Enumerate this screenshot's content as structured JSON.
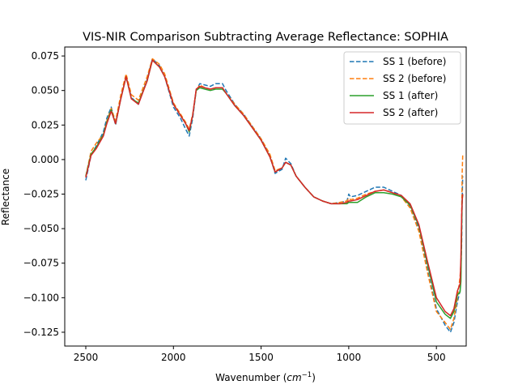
{
  "chart_data": {
    "type": "line",
    "title": "VIS-NIR Comparison Subtracting Average Reflectance: SOPHIA",
    "xlabel_text": "Wavenumber (",
    "xlabel_italic": "cm",
    "xlabel_sup": "−1",
    "xlabel_close": ")",
    "ylabel": "Reflectance",
    "xlim": [
      2620,
      330
    ],
    "ylim": [
      -0.135,
      0.0815
    ],
    "x_ticks": [
      {
        "value": 2500,
        "label": "2500"
      },
      {
        "value": 2000,
        "label": "2000"
      },
      {
        "value": 1500,
        "label": "1500"
      },
      {
        "value": 1000,
        "label": "1000"
      },
      {
        "value": 500,
        "label": "500"
      }
    ],
    "y_ticks": [
      {
        "value": 0.075,
        "label": "0.075"
      },
      {
        "value": 0.05,
        "label": "0.050"
      },
      {
        "value": 0.025,
        "label": "0.025"
      },
      {
        "value": 0.0,
        "label": "0.000"
      },
      {
        "value": -0.025,
        "label": "−0.025"
      },
      {
        "value": -0.05,
        "label": "−0.050"
      },
      {
        "value": -0.075,
        "label": "−0.075"
      },
      {
        "value": -0.1,
        "label": "−0.100"
      },
      {
        "value": -0.125,
        "label": "−0.125"
      }
    ],
    "grid": false,
    "legend_position": "top-right",
    "series": [
      {
        "name": "SS 1 (before)",
        "color": "#1f77b4",
        "dash": true,
        "x": [
          2500,
          2470,
          2440,
          2400,
          2380,
          2355,
          2330,
          2300,
          2270,
          2240,
          2200,
          2150,
          2120,
          2080,
          2050,
          2000,
          1960,
          1930,
          1910,
          1890,
          1870,
          1850,
          1820,
          1790,
          1760,
          1720,
          1700,
          1650,
          1600,
          1550,
          1500,
          1450,
          1420,
          1380,
          1360,
          1330,
          1300,
          1250,
          1200,
          1150,
          1100,
          1050,
          1010,
          1000,
          990,
          950,
          900,
          850,
          800,
          750,
          700,
          650,
          600,
          550,
          500,
          450,
          420,
          400,
          380,
          365,
          360,
          356,
          353,
          350
        ],
        "y": [
          -0.015,
          0.003,
          0.01,
          0.02,
          0.03,
          0.038,
          0.025,
          0.045,
          0.06,
          0.045,
          0.04,
          0.058,
          0.073,
          0.068,
          0.06,
          0.038,
          0.03,
          0.022,
          0.017,
          0.03,
          0.05,
          0.055,
          0.054,
          0.053,
          0.055,
          0.055,
          0.05,
          0.04,
          0.033,
          0.024,
          0.015,
          0.003,
          -0.01,
          -0.007,
          0.001,
          -0.003,
          -0.012,
          -0.02,
          -0.027,
          -0.03,
          -0.032,
          -0.031,
          -0.03,
          -0.025,
          -0.027,
          -0.026,
          -0.023,
          -0.02,
          -0.02,
          -0.023,
          -0.026,
          -0.034,
          -0.05,
          -0.08,
          -0.108,
          -0.12,
          -0.125,
          -0.118,
          -0.103,
          -0.095,
          -0.08,
          -0.06,
          -0.03,
          -0.012
        ]
      },
      {
        "name": "SS 2 (before)",
        "color": "#ff7f0e",
        "dash": true,
        "x": [
          2500,
          2470,
          2440,
          2400,
          2380,
          2355,
          2330,
          2300,
          2270,
          2240,
          2200,
          2150,
          2120,
          2080,
          2050,
          2000,
          1960,
          1930,
          1910,
          1890,
          1870,
          1850,
          1820,
          1790,
          1760,
          1720,
          1700,
          1650,
          1600,
          1550,
          1500,
          1450,
          1420,
          1380,
          1360,
          1330,
          1300,
          1250,
          1200,
          1150,
          1100,
          1050,
          1010,
          1000,
          990,
          950,
          900,
          850,
          800,
          750,
          700,
          650,
          600,
          550,
          500,
          450,
          420,
          400,
          380,
          365,
          360,
          356,
          353,
          350
        ],
        "y": [
          -0.012,
          0.006,
          0.012,
          0.018,
          0.028,
          0.037,
          0.028,
          0.047,
          0.062,
          0.047,
          0.043,
          0.06,
          0.073,
          0.069,
          0.062,
          0.041,
          0.033,
          0.027,
          0.022,
          0.033,
          0.05,
          0.054,
          0.052,
          0.051,
          0.052,
          0.052,
          0.048,
          0.04,
          0.033,
          0.024,
          0.015,
          0.004,
          -0.008,
          -0.006,
          -0.002,
          -0.004,
          -0.012,
          -0.02,
          -0.027,
          -0.03,
          -0.032,
          -0.031,
          -0.03,
          -0.028,
          -0.029,
          -0.028,
          -0.025,
          -0.023,
          -0.022,
          -0.024,
          -0.027,
          -0.035,
          -0.052,
          -0.082,
          -0.11,
          -0.118,
          -0.123,
          -0.115,
          -0.1,
          -0.085,
          -0.075,
          -0.04,
          -0.01,
          0.003
        ]
      },
      {
        "name": "SS 1 (after)",
        "color": "#2ca02c",
        "dash": false,
        "x": [
          2500,
          2470,
          2440,
          2400,
          2380,
          2355,
          2330,
          2300,
          2270,
          2240,
          2200,
          2150,
          2120,
          2080,
          2050,
          2000,
          1960,
          1930,
          1910,
          1890,
          1870,
          1850,
          1820,
          1790,
          1760,
          1720,
          1700,
          1650,
          1600,
          1550,
          1500,
          1450,
          1420,
          1380,
          1360,
          1330,
          1300,
          1250,
          1200,
          1150,
          1100,
          1050,
          1010,
          1000,
          990,
          950,
          900,
          850,
          800,
          750,
          700,
          650,
          600,
          550,
          500,
          450,
          420,
          400,
          380,
          365,
          360,
          356,
          353,
          350
        ],
        "y": [
          -0.012,
          0.004,
          0.009,
          0.018,
          0.027,
          0.036,
          0.026,
          0.044,
          0.06,
          0.044,
          0.041,
          0.057,
          0.072,
          0.067,
          0.06,
          0.04,
          0.032,
          0.026,
          0.02,
          0.032,
          0.05,
          0.052,
          0.051,
          0.05,
          0.051,
          0.051,
          0.048,
          0.039,
          0.032,
          0.023,
          0.014,
          0.002,
          -0.009,
          -0.006,
          -0.002,
          -0.004,
          -0.012,
          -0.02,
          -0.027,
          -0.03,
          -0.032,
          -0.032,
          -0.032,
          -0.031,
          -0.031,
          -0.031,
          -0.027,
          -0.024,
          -0.024,
          -0.025,
          -0.027,
          -0.033,
          -0.048,
          -0.076,
          -0.103,
          -0.112,
          -0.115,
          -0.11,
          -0.098,
          -0.096,
          -0.088,
          -0.05,
          -0.03,
          -0.025
        ]
      },
      {
        "name": "SS 2 (after)",
        "color": "#d62728",
        "dash": false,
        "x": [
          2500,
          2470,
          2440,
          2400,
          2380,
          2355,
          2330,
          2300,
          2270,
          2240,
          2200,
          2150,
          2120,
          2080,
          2050,
          2000,
          1960,
          1930,
          1910,
          1890,
          1870,
          1850,
          1820,
          1790,
          1760,
          1720,
          1700,
          1650,
          1600,
          1550,
          1500,
          1450,
          1420,
          1380,
          1360,
          1330,
          1300,
          1250,
          1200,
          1150,
          1100,
          1050,
          1010,
          1000,
          990,
          950,
          900,
          850,
          800,
          750,
          700,
          650,
          600,
          550,
          500,
          450,
          420,
          400,
          380,
          365,
          360,
          356,
          353,
          350
        ],
        "y": [
          -0.013,
          0.003,
          0.008,
          0.017,
          0.026,
          0.035,
          0.026,
          0.044,
          0.06,
          0.044,
          0.04,
          0.057,
          0.072,
          0.067,
          0.06,
          0.04,
          0.032,
          0.026,
          0.021,
          0.032,
          0.051,
          0.053,
          0.052,
          0.051,
          0.052,
          0.052,
          0.048,
          0.039,
          0.032,
          0.023,
          0.014,
          0.002,
          -0.009,
          -0.006,
          -0.002,
          -0.004,
          -0.012,
          -0.02,
          -0.027,
          -0.03,
          -0.032,
          -0.032,
          -0.031,
          -0.03,
          -0.03,
          -0.029,
          -0.026,
          -0.023,
          -0.022,
          -0.024,
          -0.026,
          -0.032,
          -0.047,
          -0.074,
          -0.1,
          -0.11,
          -0.113,
          -0.108,
          -0.095,
          -0.09,
          -0.07,
          -0.04,
          -0.03,
          -0.025
        ]
      }
    ]
  }
}
